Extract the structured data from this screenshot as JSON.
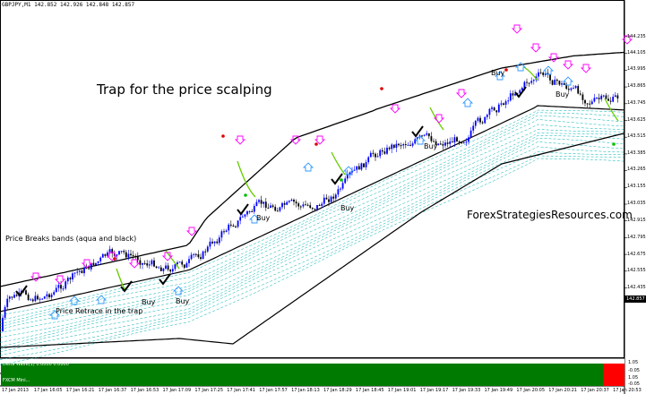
{
  "header": {
    "symbol_info": "GBPJPY,M1  142.852 142.926 142.848 142.857"
  },
  "annotations": {
    "title": "Trap for the price scalping",
    "site": "ForexStrategiesResources.com",
    "breaks": "Price Breaks bands (aqua and black)",
    "retrace": "Price Retrace in the trap",
    "buy": "Buy"
  },
  "buy_labels": [
    "Buy",
    "Buy",
    "Buy",
    "Buy",
    "Buy",
    "Buy",
    "Buy"
  ],
  "price_axis": {
    "labels": [
      "144.235",
      "144.105",
      "143.995",
      "143.865",
      "143.745",
      "143.625",
      "143.515",
      "143.385",
      "143.265",
      "143.155",
      "143.035",
      "142.915",
      "142.795",
      "142.675",
      "142.555",
      "142.435"
    ],
    "current_price": "142.857"
  },
  "time_axis": {
    "labels": [
      "17 Jan 2013",
      "17 Jan 16:05",
      "17 Jan 16:21",
      "17 Jan 16:37",
      "17 Jan 16:53",
      "17 Jan 17:09",
      "17 Jan 17:25",
      "17 Jan 17:41",
      "17 Jan 17:57",
      "17 Jan 18:13",
      "17 Jan 18:29",
      "17 Jan 18:45",
      "17 Jan 19:01",
      "17 Jan 19:17",
      "17 Jan 19:33",
      "17 Jan 19:49",
      "17 Jan 20:05",
      "17 Jan 20:21",
      "17 Jan 20:37",
      "17 Jan 20:53"
    ]
  },
  "indicators": {
    "delta_label": "Delta Wave(1) 0.0000 0.0000",
    "delta_scale": [
      "1.05",
      "-0.05"
    ],
    "fxcm_label": "FXCM Mini...",
    "fxcm_scale": [
      "1.05",
      "-0.05"
    ]
  },
  "colors": {
    "up_candle": "#0000ff",
    "down_candle": "#000000",
    "trap_line": "#00b0b0",
    "band_line": "#000000",
    "signal_line": "#66cc00",
    "arrow_down": "#ff00ff",
    "arrow_up": "#3399ff",
    "dot_red": "#e00000",
    "dot_green": "#00c000",
    "bar_green": "#007a00",
    "bar_red": "#ff0000"
  }
}
